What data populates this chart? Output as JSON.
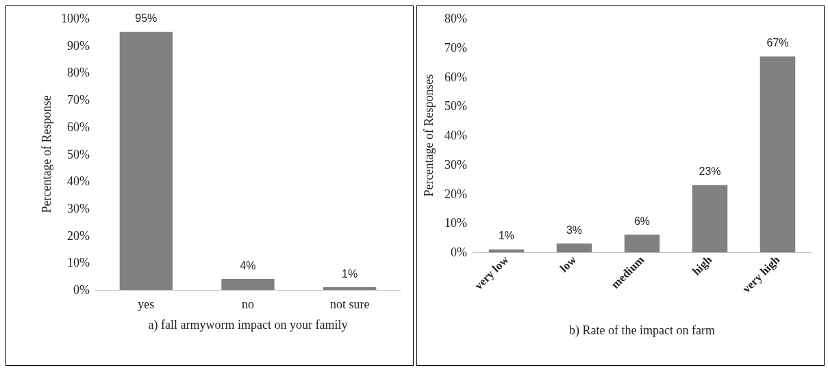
{
  "chart_data": [
    {
      "type": "bar",
      "xlabel": "a) fall armyworm impact on your family",
      "ylabel": "Percentage of Response",
      "categories": [
        "yes",
        "no",
        "not sure"
      ],
      "values": [
        95,
        4,
        1
      ],
      "value_labels": [
        "95%",
        "4%",
        "1%"
      ],
      "color": "#808080",
      "ylim": [
        0,
        100
      ],
      "yticks": [
        {
          "value": 0,
          "label": "0%"
        },
        {
          "value": 10,
          "label": "10%"
        },
        {
          "value": 20,
          "label": "20%"
        },
        {
          "value": 30,
          "label": "30%"
        },
        {
          "value": 40,
          "label": "40%"
        },
        {
          "value": 50,
          "label": "50%"
        },
        {
          "value": 60,
          "label": "60%"
        },
        {
          "value": 70,
          "label": "70%"
        },
        {
          "value": 80,
          "label": "80%"
        },
        {
          "value": 90,
          "label": "90%"
        },
        {
          "value": 100,
          "label": "100%"
        }
      ],
      "grid": false
    },
    {
      "type": "bar",
      "xlabel": "b) Rate of the impact on farm",
      "ylabel": "Percentage of Responses",
      "categories": [
        "very low",
        "low",
        "medium",
        "high",
        "very high"
      ],
      "values": [
        1,
        3,
        6,
        23,
        67
      ],
      "value_labels": [
        "1%",
        "3%",
        "6%",
        "23%",
        "67%"
      ],
      "color": "#808080",
      "ylim": [
        0,
        80
      ],
      "yticks": [
        {
          "value": 0,
          "label": "0%"
        },
        {
          "value": 10,
          "label": "10%"
        },
        {
          "value": 20,
          "label": "20%"
        },
        {
          "value": 30,
          "label": "30%"
        },
        {
          "value": 40,
          "label": "40%"
        },
        {
          "value": 50,
          "label": "50%"
        },
        {
          "value": 60,
          "label": "60%"
        },
        {
          "value": 70,
          "label": "70%"
        },
        {
          "value": 80,
          "label": "80%"
        }
      ],
      "grid": false
    }
  ]
}
